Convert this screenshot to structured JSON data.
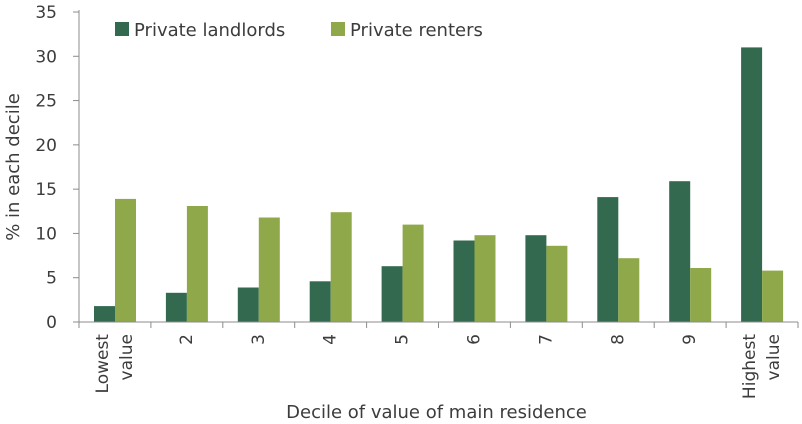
{
  "chart_data": {
    "type": "bar",
    "xlabel": "Decile of value of main residence",
    "ylabel": "% in each decile",
    "ylim": [
      0,
      35
    ],
    "yticks": [
      0,
      5,
      10,
      15,
      20,
      25,
      30,
      35
    ],
    "grid": false,
    "legend_position": "top-left",
    "categories": [
      [
        "Lowest",
        "value"
      ],
      [
        "2"
      ],
      [
        "3"
      ],
      [
        "4"
      ],
      [
        "5"
      ],
      [
        "6"
      ],
      [
        "7"
      ],
      [
        "8"
      ],
      [
        "9"
      ],
      [
        "Highest",
        "value"
      ]
    ],
    "series": [
      {
        "name": "Private landlords",
        "color": "#336a4f",
        "values": [
          1.8,
          3.3,
          3.9,
          4.6,
          6.3,
          9.2,
          9.8,
          14.1,
          15.9,
          31.0
        ]
      },
      {
        "name": "Private renters",
        "color": "#8fa84a",
        "values": [
          13.9,
          13.1,
          11.8,
          12.4,
          11.0,
          9.8,
          8.6,
          7.2,
          6.1,
          5.8
        ]
      }
    ]
  }
}
